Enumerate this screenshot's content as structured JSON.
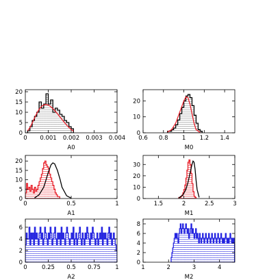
{
  "figure": {
    "background": "#ffffff"
  },
  "colors": {
    "black": "#000000",
    "red": "#e8202a",
    "blue": "#2424e0",
    "hatch": "#888888",
    "red_hatch": "#e8202a",
    "blue_hatch": "#2424e0",
    "frame": "#000000"
  },
  "chart_data": [
    {
      "id": "A0",
      "type": "bar",
      "xlabel": "A0",
      "xlim": [
        0,
        0.004
      ],
      "ylim": [
        0,
        21
      ],
      "xticks": [
        0,
        0.001,
        0.002,
        0.003,
        0.004
      ],
      "xticklabels": [
        "0",
        "0.001",
        "0.002",
        "0.003",
        "0.004"
      ],
      "yticks": [
        0,
        5,
        10,
        15,
        20
      ],
      "yticklabels": [
        "0",
        "5",
        "10",
        "15",
        "20"
      ],
      "grid": false,
      "series": [
        {
          "kind": "hatched-histogram",
          "color": "black",
          "bin_start": 0.0001,
          "bin_width": 0.0001,
          "values": [
            1,
            3,
            6,
            8,
            10,
            15,
            12,
            14,
            19,
            14,
            16,
            10,
            12,
            11,
            9,
            8,
            6,
            5,
            3,
            2
          ]
        },
        {
          "kind": "smooth-curve",
          "color": "red",
          "x": [
            0.0001,
            0.0002,
            0.0003,
            0.0004,
            0.0005,
            0.0006,
            0.0007,
            0.0008,
            0.0009,
            0.001,
            0.0011,
            0.0012,
            0.0013,
            0.0014,
            0.0015,
            0.0016,
            0.0017,
            0.0018,
            0.0019,
            0.002,
            0.0021
          ],
          "y": [
            1,
            2.5,
            4.8,
            7.2,
            9.5,
            11.4,
            12.8,
            13.6,
            13.8,
            13.5,
            12.8,
            11.8,
            10.6,
            9.3,
            7.9,
            6.5,
            5.1,
            3.8,
            2.6,
            1.6,
            0.8
          ]
        }
      ]
    },
    {
      "id": "M0",
      "type": "bar",
      "xlabel": "M0",
      "xlim": [
        0.6,
        1.5
      ],
      "ylim": [
        0,
        27
      ],
      "xticks": [
        0.6,
        0.8,
        1,
        1.2,
        1.4
      ],
      "xticklabels": [
        "0.6",
        "0.8",
        "1",
        "1.2",
        "1.4"
      ],
      "yticks": [
        0,
        10,
        20
      ],
      "yticklabels": [
        "0",
        "10",
        "20"
      ],
      "grid": false,
      "series": [
        {
          "kind": "hatched-histogram",
          "color": "black",
          "bin_start": 0.84,
          "bin_width": 0.02,
          "values": [
            1,
            1,
            2,
            3,
            5,
            8,
            12,
            16,
            20,
            23,
            24,
            22,
            17,
            11,
            6,
            2,
            1
          ]
        },
        {
          "kind": "smooth-curve",
          "color": "red",
          "x": [
            0.84,
            0.88,
            0.92,
            0.96,
            1.0,
            1.02,
            1.04,
            1.06,
            1.08,
            1.1,
            1.12,
            1.16
          ],
          "y": [
            0.5,
            2,
            6,
            13,
            20,
            22.5,
            22,
            18,
            12,
            6,
            2,
            0.2
          ]
        }
      ]
    },
    {
      "id": "A1",
      "type": "bar",
      "xlabel": "A1",
      "xlim": [
        0,
        1
      ],
      "ylim": [
        0,
        23
      ],
      "xticks": [
        0,
        0.5,
        1
      ],
      "xticklabels": [
        "0",
        "0.5",
        "1"
      ],
      "yticks": [
        0,
        5,
        10,
        15,
        20
      ],
      "yticklabels": [
        "0",
        "5",
        "10",
        "15",
        "20"
      ],
      "grid": false,
      "series": [
        {
          "kind": "hatched-histogram",
          "color": "red",
          "bin_start": 0.0,
          "bin_width": 0.0125,
          "values": [
            3,
            8,
            5,
            6,
            4,
            7,
            5,
            3,
            6,
            4,
            5,
            7,
            9,
            11,
            13,
            16,
            19,
            20,
            18,
            17,
            16,
            13,
            11,
            9,
            7,
            5,
            3,
            2,
            1,
            1
          ]
        },
        {
          "kind": "smooth-curve",
          "color": "black",
          "x": [
            0.1,
            0.15,
            0.2,
            0.22,
            0.25,
            0.28,
            0.3,
            0.32,
            0.35,
            0.38,
            0.4,
            0.45,
            0.5
          ],
          "y": [
            0.3,
            2,
            6,
            9,
            14,
            18,
            19,
            18.5,
            15,
            10,
            6,
            1.5,
            0.2
          ]
        }
      ]
    },
    {
      "id": "M1",
      "type": "bar",
      "xlabel": "M1",
      "xlim": [
        1.2,
        3.0
      ],
      "ylim": [
        0,
        38
      ],
      "xticks": [
        1.5,
        2,
        2.5,
        3
      ],
      "xticklabels": [
        "1.5",
        "2",
        "2.5",
        "3"
      ],
      "yticks": [
        0,
        10,
        20,
        30
      ],
      "yticklabels": [
        "0",
        "10",
        "20",
        "30"
      ],
      "grid": false,
      "series": [
        {
          "kind": "hatched-histogram",
          "color": "red",
          "bin_start": 1.9,
          "bin_width": 0.02,
          "values": [
            1,
            1,
            2,
            3,
            5,
            8,
            12,
            18,
            25,
            32,
            34,
            30,
            22,
            13,
            6,
            2,
            1
          ]
        },
        {
          "kind": "smooth-curve",
          "color": "black",
          "x": [
            1.9,
            1.98,
            2.04,
            2.08,
            2.12,
            2.16,
            2.18,
            2.2,
            2.22,
            2.24,
            2.26,
            2.3
          ],
          "y": [
            0.5,
            3,
            8,
            14,
            22,
            30,
            33,
            32,
            26,
            16,
            8,
            1
          ]
        }
      ]
    },
    {
      "id": "A2",
      "type": "bar",
      "xlabel": "A2",
      "xlim": [
        0,
        1
      ],
      "ylim": [
        0,
        7.4
      ],
      "xticks": [
        0,
        0.25,
        0.5,
        0.75,
        1
      ],
      "xticklabels": [
        "0",
        "0.25",
        "0.5",
        "0.75",
        "1"
      ],
      "yticks": [
        0,
        2,
        4,
        6
      ],
      "yticklabels": [
        "0",
        "2",
        "4",
        "6"
      ],
      "grid": false,
      "series": [
        {
          "kind": "hatched-histogram",
          "color": "blue",
          "bin_start": 0.0,
          "bin_width": 0.01,
          "values": [
            3,
            5,
            4,
            4,
            6,
            3,
            5,
            4,
            5,
            3,
            6,
            4,
            5,
            4,
            3,
            5,
            6,
            4,
            5,
            3,
            4,
            6,
            5,
            4,
            3,
            5,
            4,
            6,
            5,
            3,
            4,
            5,
            6,
            4,
            3,
            5,
            4,
            5,
            3,
            6,
            4,
            5,
            4,
            3,
            5,
            6,
            5,
            4,
            3,
            4,
            5,
            4,
            6,
            3,
            4,
            5,
            3,
            4,
            5,
            6,
            4,
            3,
            5,
            4,
            3,
            5,
            4,
            6,
            5,
            4,
            3,
            5,
            4,
            6,
            5,
            4,
            3,
            4,
            5,
            3,
            4,
            5,
            4,
            6,
            3,
            5,
            4,
            5,
            4,
            3,
            5,
            6,
            4,
            5,
            3,
            4,
            5,
            4,
            3,
            2
          ]
        }
      ]
    },
    {
      "id": "M2",
      "type": "bar",
      "xlabel": "M2",
      "xlim": [
        1,
        4.6
      ],
      "ylim": [
        0,
        9
      ],
      "xticks": [
        1,
        2,
        3,
        4
      ],
      "xticklabels": [
        "1",
        "2",
        "3",
        "4"
      ],
      "yticks": [
        0,
        2,
        4,
        6,
        8
      ],
      "yticklabels": [
        "0",
        "2",
        "4",
        "6",
        "8"
      ],
      "grid": false,
      "series": [
        {
          "kind": "hatched-histogram",
          "color": "blue",
          "bin_start": 2.1,
          "bin_width": 0.03,
          "values": [
            1,
            2,
            3,
            4,
            5,
            6,
            5,
            6,
            5,
            4,
            6,
            7,
            8,
            6,
            7,
            8,
            7,
            6,
            7,
            8,
            7,
            6,
            7,
            5,
            6,
            7,
            8,
            6,
            7,
            6,
            5,
            6,
            7,
            5,
            6,
            5,
            4,
            6,
            5,
            4,
            5,
            6,
            5,
            4,
            5,
            6,
            5,
            4,
            5,
            6,
            5,
            4,
            5,
            6,
            5,
            4,
            5,
            6,
            5,
            4,
            5,
            6,
            5,
            4,
            5,
            6,
            5,
            4,
            5,
            4,
            5,
            6,
            5,
            4,
            5,
            4,
            5,
            6,
            5,
            4,
            5,
            4,
            5
          ]
        }
      ]
    }
  ]
}
